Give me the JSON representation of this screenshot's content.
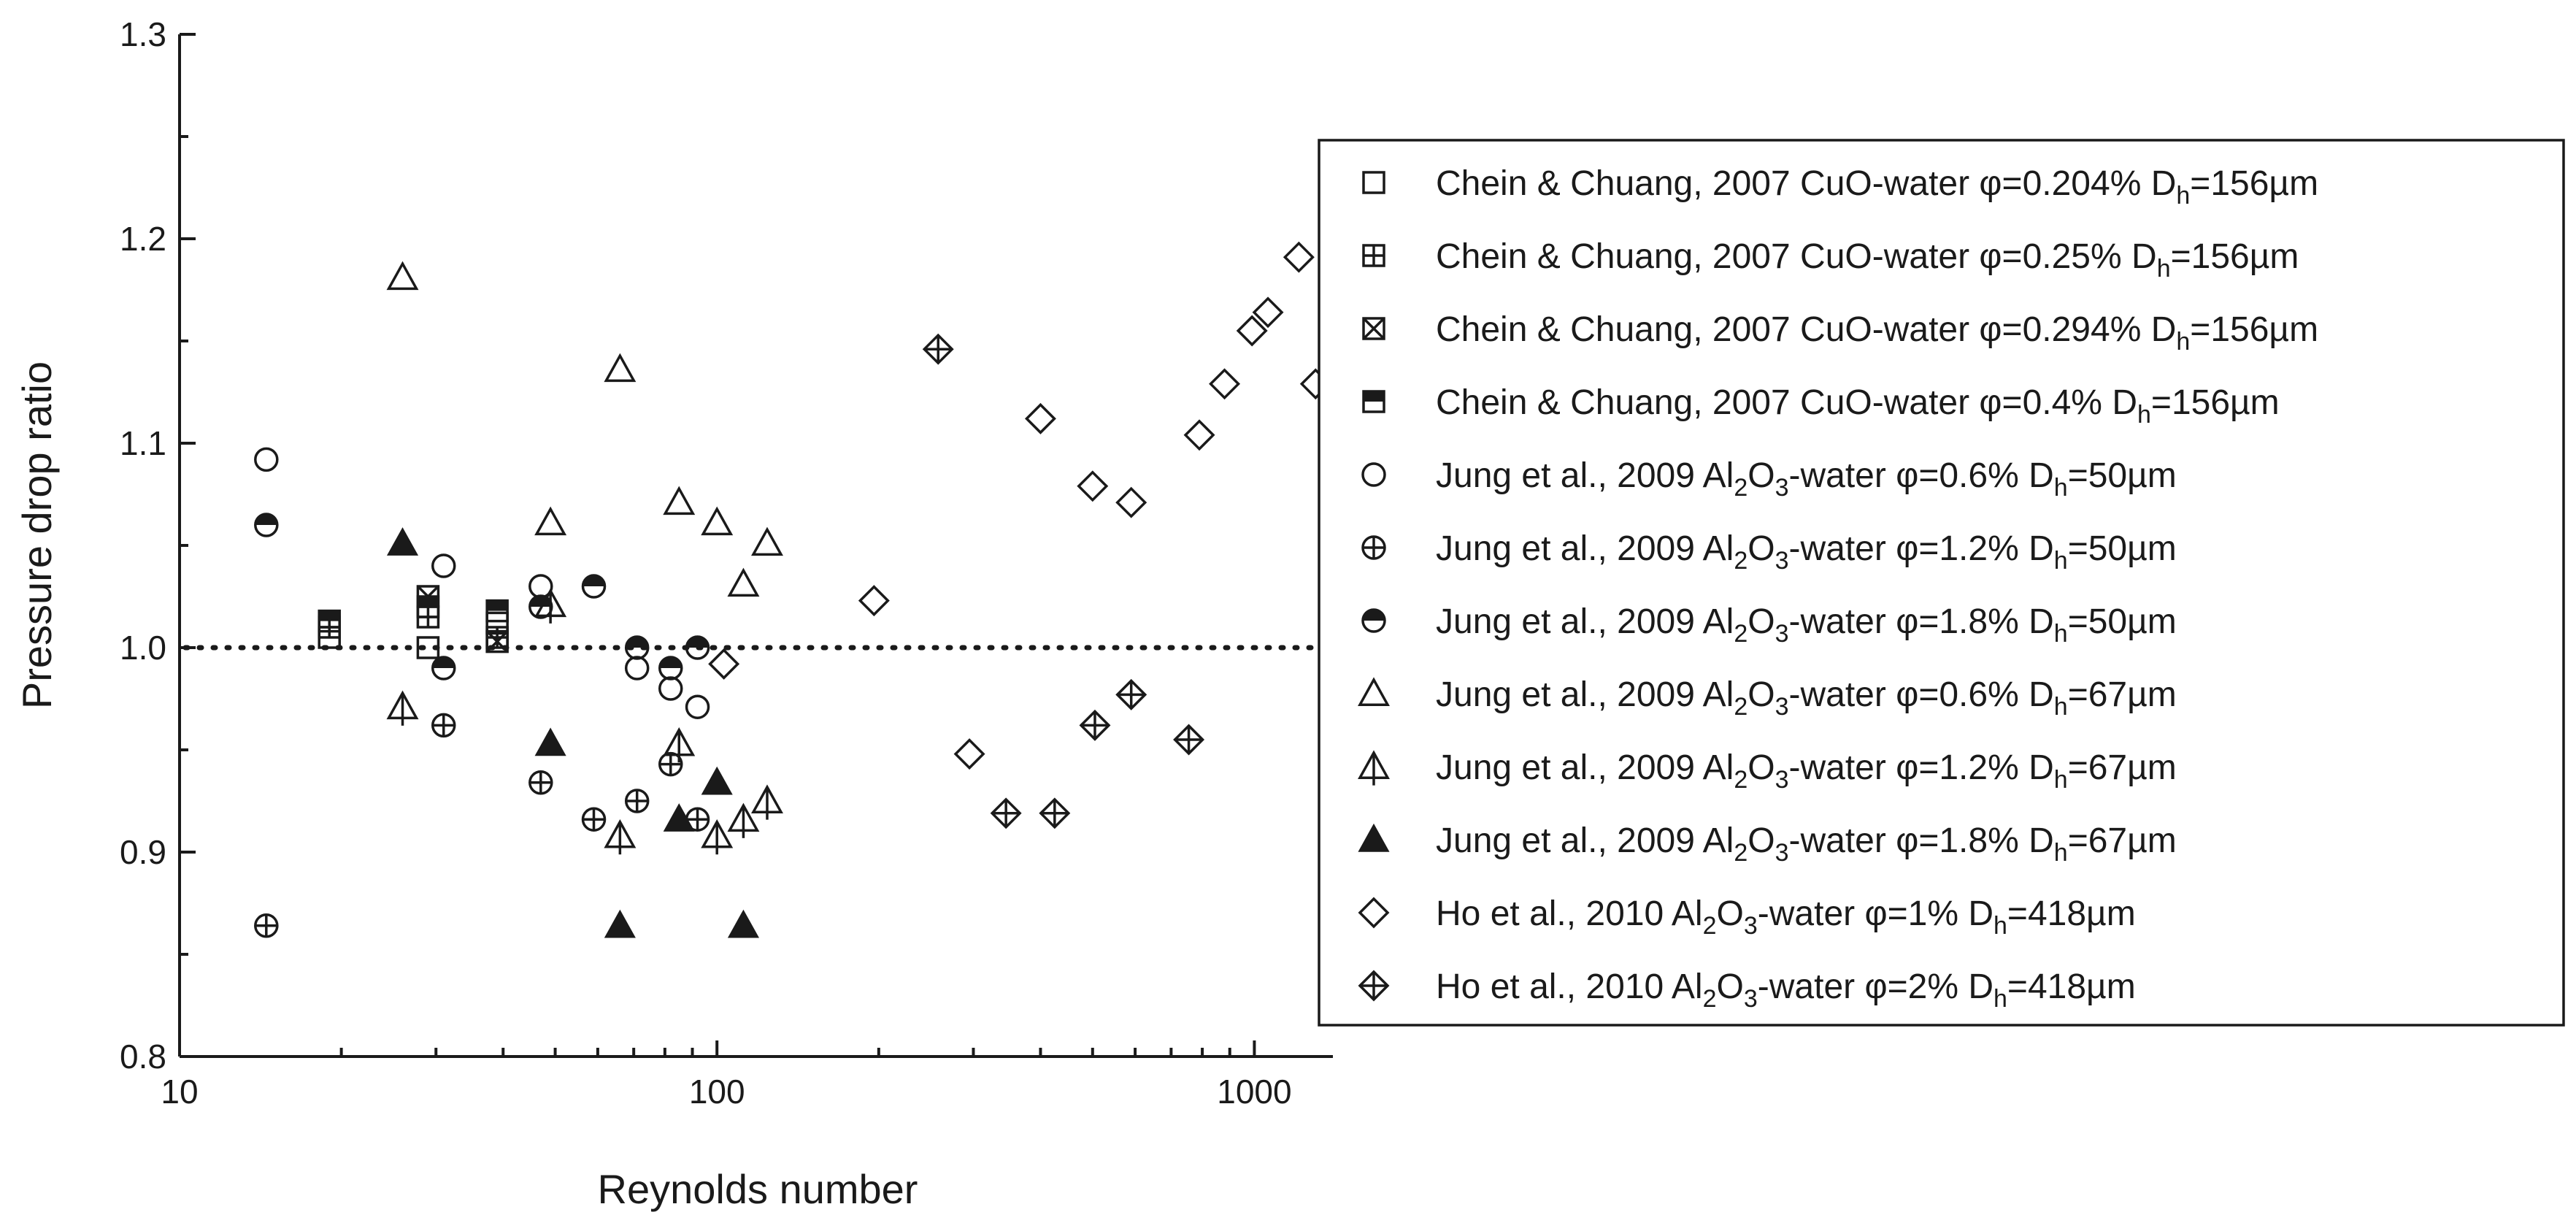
{
  "chart_data": {
    "type": "scatter",
    "xlabel": "Reynolds number",
    "ylabel": "Pressure drop ratio",
    "xscale": "log",
    "xlim": [
      10,
      1400
    ],
    "ylim": [
      0.8,
      1.3
    ],
    "xticks": [
      10,
      100,
      1000
    ],
    "xtick_labels": [
      "10",
      "100",
      "1000"
    ],
    "yticks": [
      0.8,
      0.9,
      1.0,
      1.1,
      1.2,
      1.3
    ],
    "ytick_labels": [
      "0.8",
      "0.9",
      "1.0",
      "1.1",
      "1.2",
      "1.3"
    ],
    "reference_line": {
      "y": 1.0,
      "style": "dotted"
    },
    "grid": false,
    "legend_position": "right",
    "series": [
      {
        "name": "Chein & Chuang, 2007 CuO-water φ=0.204% Dh=156µm",
        "legend": {
          "prefix": "Chein & Chuang, 2007 CuO-water φ=0.204% D",
          "sub": "h",
          "suffix": "=156µm"
        },
        "marker": "square",
        "points": [
          [
            19,
            1.005
          ],
          [
            29,
            1.0
          ],
          [
            39,
            1.012
          ]
        ]
      },
      {
        "name": "Chein & Chuang, 2007 CuO-water φ=0.25% Dh=156µm",
        "legend": {
          "prefix": "Chein & Chuang, 2007 CuO-water φ=0.25% D",
          "sub": "h",
          "suffix": "=156µm"
        },
        "marker": "square-plus",
        "points": [
          [
            19,
            1.01
          ],
          [
            29,
            1.015
          ],
          [
            39,
            1.005
          ]
        ]
      },
      {
        "name": "Chein & Chuang, 2007 CuO-water φ=0.294% Dh=156µm",
        "legend": {
          "prefix": "Chein & Chuang, 2007 CuO-water φ=0.294% D",
          "sub": "h",
          "suffix": "=156µm"
        },
        "marker": "square-x",
        "points": [
          [
            29,
            1.025
          ],
          [
            39,
            1.003
          ]
        ]
      },
      {
        "name": "Chein & Chuang, 2007 CuO-water φ=0.4% Dh=156µm",
        "legend": {
          "prefix": "Chein & Chuang, 2007 CuO-water φ=0.4% D",
          "sub": "h",
          "suffix": "=156µm"
        },
        "marker": "square-half",
        "points": [
          [
            19,
            1.013
          ],
          [
            29,
            1.02
          ],
          [
            39,
            1.018
          ]
        ]
      },
      {
        "name": "Jung et al., 2009 Al2O3-water φ=0.6% Dh=50µm",
        "legend": {
          "prefix": "Jung et al., 2009 Al",
          "sub1": "2",
          "mid": "O",
          "sub2": "3",
          "mid2": "-water φ=0.6% D",
          "sub": "h",
          "suffix": "=50µm"
        },
        "marker": "circle",
        "points": [
          [
            14.5,
            1.092
          ],
          [
            31,
            1.04
          ],
          [
            47,
            1.03
          ],
          [
            71,
            0.99
          ],
          [
            82,
            0.98
          ],
          [
            92,
            0.971
          ]
        ]
      },
      {
        "name": "Jung et al., 2009 Al2O3-water φ=1.2% Dh=50µm",
        "legend": {
          "prefix": "Jung et al., 2009 Al",
          "sub1": "2",
          "mid": "O",
          "sub2": "3",
          "mid2": "-water φ=1.2% D",
          "sub": "h",
          "suffix": "=50µm"
        },
        "marker": "circle-plus",
        "points": [
          [
            14.5,
            0.864
          ],
          [
            31,
            0.962
          ],
          [
            47,
            0.934
          ],
          [
            59,
            0.916
          ],
          [
            71,
            0.925
          ],
          [
            82,
            0.943
          ],
          [
            92,
            0.916
          ]
        ]
      },
      {
        "name": "Jung et al., 2009 Al2O3-water φ=1.8% Dh=50µm",
        "legend": {
          "prefix": "Jung et al., 2009 Al",
          "sub1": "2",
          "mid": "O",
          "sub2": "3",
          "mid2": "-water φ=1.8% D",
          "sub": "h",
          "suffix": "=50µm"
        },
        "marker": "circle-half",
        "points": [
          [
            14.5,
            1.06
          ],
          [
            31,
            0.99
          ],
          [
            47,
            1.02
          ],
          [
            59,
            1.03
          ],
          [
            71,
            1.0
          ],
          [
            82,
            0.99
          ],
          [
            92,
            1.0
          ]
        ]
      },
      {
        "name": "Jung et al., 2009 Al2O3-water φ=0.6% Dh=67µm",
        "legend": {
          "prefix": "Jung et al., 2009 Al",
          "sub1": "2",
          "mid": "O",
          "sub2": "3",
          "mid2": "-water φ=0.6% D",
          "sub": "h",
          "suffix": "=67µm"
        },
        "marker": "triangle",
        "points": [
          [
            26,
            1.181
          ],
          [
            49,
            1.061
          ],
          [
            66,
            1.136
          ],
          [
            85,
            1.071
          ],
          [
            100,
            1.061
          ],
          [
            112,
            1.031
          ],
          [
            124,
            1.051
          ]
        ]
      },
      {
        "name": "Jung et al., 2009 Al2O3-water φ=1.2% Dh=67µm",
        "legend": {
          "prefix": "Jung et al., 2009 Al",
          "sub1": "2",
          "mid": "O",
          "sub2": "3",
          "mid2": "-water φ=1.2% D",
          "sub": "h",
          "suffix": "=67µm"
        },
        "marker": "triangle-bar",
        "points": [
          [
            26,
            0.971
          ],
          [
            49,
            1.021
          ],
          [
            66,
            0.908
          ],
          [
            85,
            0.953
          ],
          [
            100,
            0.908
          ],
          [
            112,
            0.916
          ],
          [
            124,
            0.925
          ]
        ]
      },
      {
        "name": "Jung et al., 2009 Al2O3-water φ=1.8% Dh=67µm",
        "legend": {
          "prefix": "Jung et al., 2009 Al",
          "sub1": "2",
          "mid": "O",
          "sub2": "3",
          "mid2": "-water φ=1.8% D",
          "sub": "h",
          "suffix": "=67µm"
        },
        "marker": "triangle-filled",
        "points": [
          [
            26,
            1.051
          ],
          [
            49,
            0.953
          ],
          [
            66,
            0.864
          ],
          [
            85,
            0.916
          ],
          [
            100,
            0.934
          ],
          [
            112,
            0.864
          ]
        ]
      },
      {
        "name": "Ho et al., 2010 Al2O3-water φ=1% Dh=418µm",
        "legend": {
          "prefix": "Ho et al., 2010 Al",
          "sub1": "2",
          "mid": "O",
          "sub2": "3",
          "mid2": "-water φ=1% D",
          "sub": "h",
          "suffix": "=418µm"
        },
        "marker": "diamond",
        "points": [
          [
            103,
            0.992
          ],
          [
            196,
            1.023
          ],
          [
            295,
            0.948
          ],
          [
            400,
            1.112
          ],
          [
            500,
            1.079
          ],
          [
            590,
            1.071
          ],
          [
            790,
            1.104
          ],
          [
            880,
            1.129
          ],
          [
            990,
            1.155
          ],
          [
            1060,
            1.164
          ],
          [
            1210,
            1.191
          ],
          [
            1300,
            1.129
          ]
        ]
      },
      {
        "name": "Ho et al., 2010 Al2O3-water φ=2% Dh=418µm",
        "legend": {
          "prefix": "Ho et al., 2010 Al",
          "sub1": "2",
          "mid": "O",
          "sub2": "3",
          "mid2": "-water φ=2% D",
          "sub": "h",
          "suffix": "=418µm"
        },
        "marker": "diamond-plus",
        "points": [
          [
            258,
            1.146
          ],
          [
            345,
            0.919
          ],
          [
            425,
            0.919
          ],
          [
            505,
            0.962
          ],
          [
            590,
            0.977
          ],
          [
            755,
            0.955
          ]
        ]
      }
    ]
  }
}
